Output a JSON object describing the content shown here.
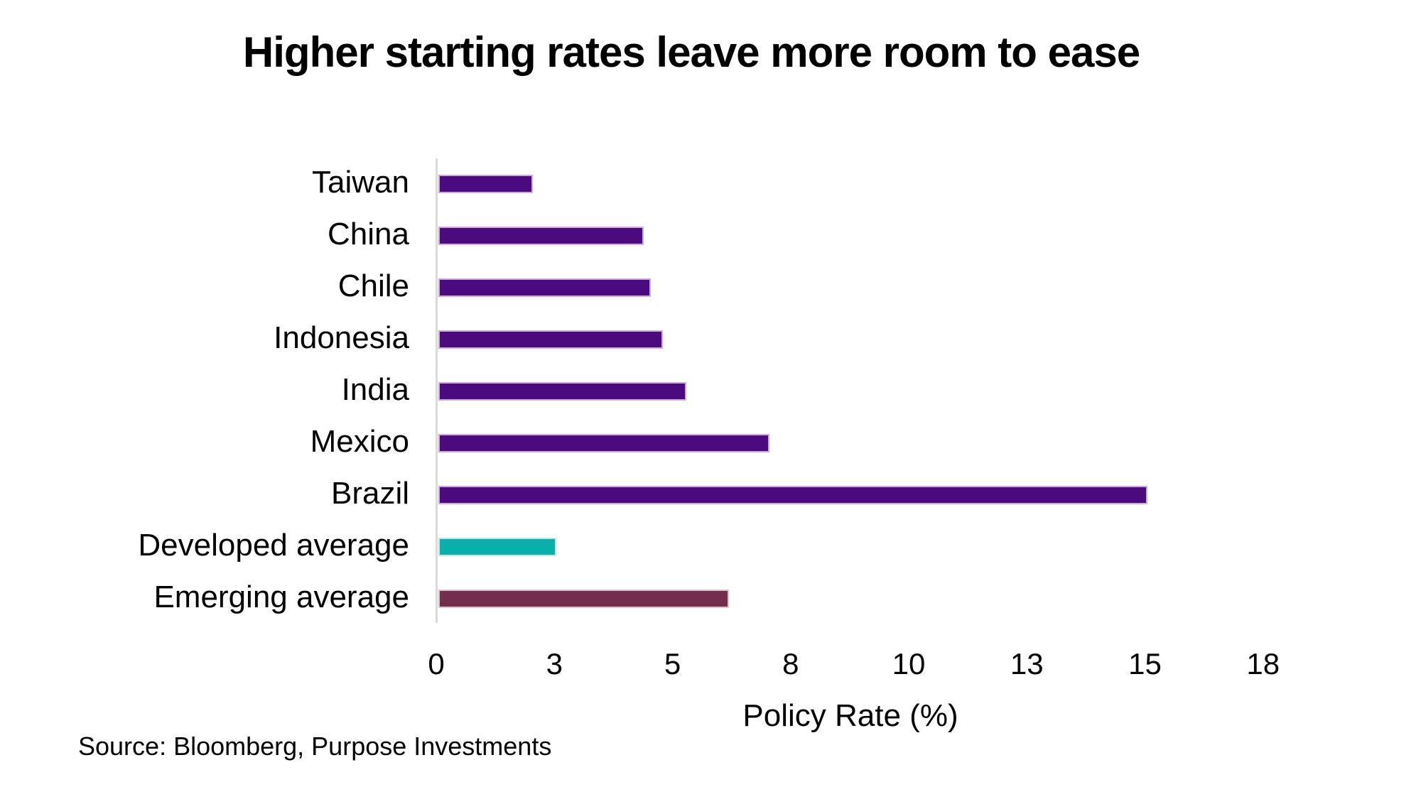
{
  "title": "Higher starting rates leave more room to ease",
  "source": "Source: Bloomberg, Purpose Investments",
  "colors": {
    "country_bar": "#4B0A7E",
    "developed_bar": "#09AFA9",
    "emerging_bar": "#722E4C",
    "axis_line": "#DBDBDB",
    "text": "#000000"
  },
  "chart_data": {
    "type": "bar",
    "orientation": "horizontal",
    "title": "Higher starting rates leave more room to ease",
    "xlabel": "Policy Rate (%)",
    "ylabel": "",
    "categories": [
      "Taiwan",
      "China",
      "Chile",
      "Indonesia",
      "India",
      "Mexico",
      "Brazil",
      "Developed average",
      "Emerging average"
    ],
    "values": [
      2.0,
      4.35,
      4.5,
      4.75,
      5.25,
      7.0,
      15.0,
      2.5,
      6.15
    ],
    "bar_colors": [
      "#4B0A7E",
      "#4B0A7E",
      "#4B0A7E",
      "#4B0A7E",
      "#4B0A7E",
      "#4B0A7E",
      "#4B0A7E",
      "#09AFA9",
      "#722E4C"
    ],
    "bar_border_colors": [
      "#CDA9DC",
      "#CDA9DC",
      "#CDA9DC",
      "#CDA9DC",
      "#CDA9DC",
      "#CDA9DC",
      "#CDA9DC",
      "#BDE8E4",
      "#DCC2CC"
    ],
    "xlim": [
      0,
      17.5
    ],
    "x_tick_values": [
      0,
      2.5,
      5,
      7.5,
      10,
      12.5,
      15,
      17.5
    ],
    "x_tick_labels": [
      "0",
      "3",
      "5",
      "8",
      "10",
      "13",
      "15",
      "18"
    ],
    "grid": "off",
    "legend": "none",
    "axis_line_color": "#DBDBDB"
  }
}
